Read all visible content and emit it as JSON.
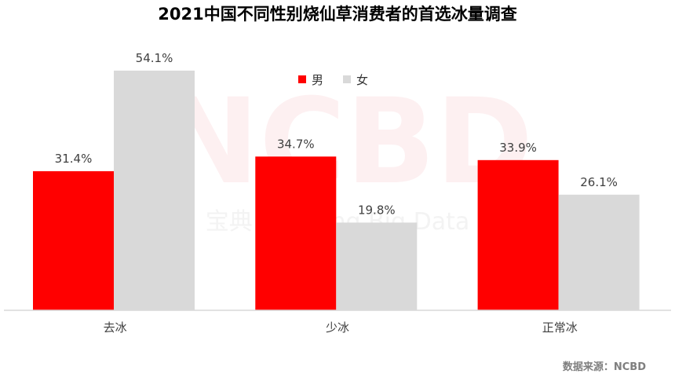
{
  "title": "2021中国不同性别烧仙草消费者的首选冰量调查",
  "source": "数据来源：NCBD",
  "watermark": {
    "logo": "NCBD",
    "tagline": "宝典  Catering Big Data"
  },
  "chart_data": {
    "type": "bar",
    "title": "2021中国不同性别烧仙草消费者的首选冰量调查",
    "categories": [
      "去冰",
      "少冰",
      "正常冰"
    ],
    "series": [
      {
        "name": "男",
        "values": [
          31.4,
          34.7,
          33.9
        ],
        "labels": [
          "31.4%",
          "34.7%",
          "33.9%"
        ],
        "color": "#ff0000"
      },
      {
        "name": "女",
        "values": [
          54.1,
          19.8,
          26.1
        ],
        "labels": [
          "54.1%",
          "19.8%",
          "26.1%"
        ],
        "color": "#d9d9d9"
      }
    ],
    "unit": "%",
    "ylim": [
      0,
      60
    ],
    "grid": false,
    "legend": "top-center",
    "axis_color": "#d9d9d9"
  }
}
